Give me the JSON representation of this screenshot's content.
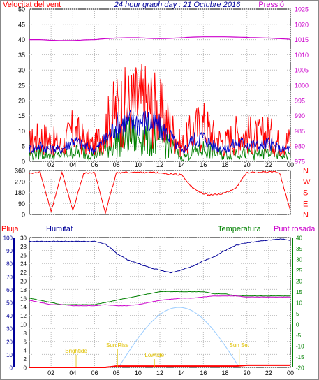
{
  "colors": {
    "wind": "#ff0000",
    "wind_avg": "#0000cc",
    "wind_low": "#008000",
    "pressure": "#cc00cc",
    "humidity": "#000099",
    "temperature": "#008000",
    "dewpoint": "#cc00cc",
    "rain": "#ff0000",
    "sun": "#99ccff",
    "yellow": "#e0c000"
  },
  "chart_data": [
    {
      "type": "line",
      "title": "24 hour graph day : 21 Octubre 2016",
      "left_axis_label": "Velocitat del vent",
      "right_axis_label": "Pressió",
      "x_ticks": [
        "02",
        "04",
        "06",
        "08",
        "10",
        "12",
        "14",
        "16",
        "18",
        "20",
        "22",
        "00"
      ],
      "y_left_ticks": [
        "0",
        "5",
        "10",
        "15",
        "20",
        "25",
        "30",
        "35",
        "40",
        "45",
        "50"
      ],
      "y_left_range": [
        0,
        50
      ],
      "y_right_ticks": [
        "975",
        "980",
        "985",
        "990",
        "995",
        "1000",
        "1005",
        "1010",
        "1015",
        "1020",
        "1025"
      ],
      "y_right_range": [
        975,
        1025
      ],
      "grid": true,
      "hours": [
        0,
        1,
        2,
        3,
        4,
        5,
        6,
        7,
        8,
        9,
        10,
        11,
        12,
        13,
        14,
        15,
        16,
        17,
        18,
        19,
        20,
        21,
        22,
        23,
        24
      ],
      "series": [
        {
          "values": [
            6,
            8,
            7,
            5,
            10,
            7,
            5,
            11,
            17,
            18,
            19,
            19,
            16,
            11,
            5,
            10,
            12,
            8,
            6,
            9,
            9,
            8,
            9,
            6,
            7
          ]
        },
        {
          "values": [
            4,
            5,
            4,
            4,
            7,
            5,
            4,
            7,
            12,
            13,
            13,
            13,
            11,
            8,
            3,
            7,
            8,
            5,
            4,
            6,
            6,
            5,
            6,
            4,
            4
          ]
        },
        {
          "values": [
            2,
            3,
            2,
            2,
            3,
            3,
            2,
            4,
            7,
            8,
            8,
            8,
            7,
            5,
            1,
            3,
            4,
            3,
            2,
            3,
            3,
            2,
            3,
            2,
            2
          ]
        },
        {
          "values": [
            1015,
            1015,
            1014.8,
            1014.7,
            1014.7,
            1014.9,
            1015,
            1015.3,
            1015.5,
            1015.6,
            1015.6,
            1015.4,
            1015.3,
            1015.4,
            1015.6,
            1015.8,
            1015.9,
            1015.9,
            1015.9,
            1015.8,
            1015.7,
            1015.6,
            1015.5,
            1015.3,
            1015.1
          ]
        }
      ]
    },
    {
      "type": "line",
      "y_left_ticks": [
        "0",
        "90",
        "180",
        "270",
        "360"
      ],
      "y_left_range": [
        0,
        360
      ],
      "y_right_labels": [
        "N",
        "W",
        "S",
        "E",
        "N"
      ],
      "grid": true,
      "hours": [
        0,
        1,
        2,
        3,
        4,
        5,
        6,
        7,
        8,
        9,
        10,
        11,
        12,
        13,
        14,
        15,
        16,
        17,
        18,
        19,
        20,
        21,
        22,
        23,
        24
      ],
      "values": [
        340,
        345,
        20,
        345,
        30,
        340,
        340,
        15,
        340,
        345,
        345,
        345,
        340,
        330,
        325,
        220,
        165,
        160,
        175,
        220,
        345,
        345,
        345,
        345,
        30
      ]
    },
    {
      "type": "line",
      "left_labels": [
        "Pluja",
        "Humitat"
      ],
      "right_labels": [
        "Temperatura",
        "Punt rosada"
      ],
      "y_rain_ticks": [
        "0",
        "2",
        "4",
        "6",
        "8",
        "10",
        "12",
        "14",
        "16",
        "18",
        "20",
        "22",
        "24",
        "26",
        "28",
        "30"
      ],
      "y_rain_range": [
        0,
        30
      ],
      "y_hum_ticks": [
        "0",
        "10",
        "20",
        "30",
        "40",
        "50",
        "60",
        "70",
        "80",
        "90",
        "100"
      ],
      "y_hum_range": [
        0,
        100
      ],
      "y_temp_ticks": [
        "-20",
        "-15",
        "-10",
        "-5",
        "0",
        "5",
        "10",
        "15",
        "20",
        "25",
        "30",
        "35",
        "40"
      ],
      "y_temp_range": [
        -20,
        40
      ],
      "grid": true,
      "hours": [
        0,
        1,
        2,
        3,
        4,
        5,
        6,
        7,
        8,
        9,
        10,
        11,
        12,
        13,
        14,
        15,
        16,
        17,
        18,
        19,
        20,
        21,
        22,
        23,
        24
      ],
      "series": [
        {
          "values": [
            97,
            97,
            97,
            97,
            97,
            97,
            97,
            95,
            88,
            83,
            80,
            77,
            75,
            73,
            75,
            78,
            82,
            85,
            90,
            94,
            96,
            97,
            98,
            99,
            98
          ]
        },
        {
          "values": [
            12,
            11,
            10,
            9,
            9,
            9,
            9,
            10,
            11,
            12,
            13,
            14,
            15,
            15,
            15,
            15,
            15,
            14,
            14,
            13,
            13,
            13,
            13,
            13,
            13
          ]
        },
        {
          "values": [
            11,
            10,
            9,
            9,
            8.5,
            8.5,
            8.5,
            9,
            8.5,
            8.5,
            9,
            10,
            11,
            11.5,
            12,
            12,
            12.5,
            13,
            13,
            13,
            12.5,
            12.5,
            12.5,
            12.5,
            12.5
          ]
        },
        {
          "values": [
            0,
            0,
            0,
            0,
            0,
            0,
            0,
            0,
            0.3,
            0.3,
            0.3,
            0.3,
            0.3,
            0.3,
            0.3,
            0.3,
            0.3,
            0.3,
            0.3,
            0.3,
            0.5,
            0.5,
            0.5,
            0.5,
            0.5
          ]
        }
      ],
      "x_ticks": [
        "02",
        "04",
        "06",
        "08",
        "10",
        "12",
        "14",
        "16",
        "18",
        "20",
        "22",
        "00"
      ],
      "annotations": [
        "Brightide",
        "Sun Rise",
        "Lowtide",
        "Sun Set"
      ]
    }
  ]
}
